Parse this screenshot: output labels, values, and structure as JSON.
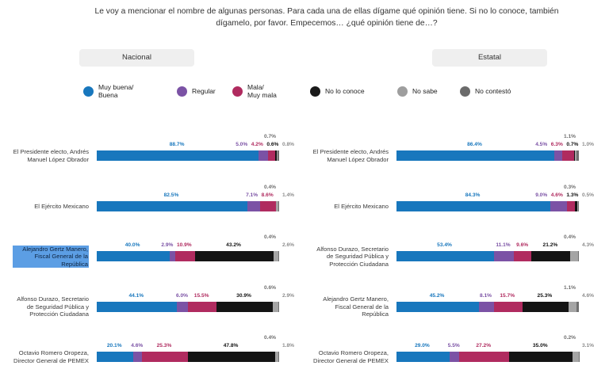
{
  "title": "Le voy a mencionar el nombre de algunas personas. Para cada una de ellas dígame qué opinión tiene. Si no lo conoce, también\ndígamelo, por favor. Empecemos… ¿qué opinión tiene de…?",
  "legend": {
    "items": [
      {
        "label": "Muy buena/\nBuena",
        "color": "#1877BD"
      },
      {
        "label": "Regular",
        "color": "#7B52A5"
      },
      {
        "label": "Mala/\nMuy mala",
        "color": "#B02B5F"
      },
      {
        "label": "No lo conoce",
        "color": "#1A1A1A"
      },
      {
        "label": "No sabe",
        "color": "#9E9E9E"
      },
      {
        "label": "No contestó",
        "color": "#6B6B6B"
      }
    ]
  },
  "ui": {
    "selection_color": "#5C9EE4",
    "pill_background": "#EFEFEF"
  },
  "chart_data": {
    "type": "bar",
    "orientation": "horizontal-stacked",
    "unit": "percent",
    "xlim": [
      0,
      100
    ],
    "grid": false,
    "legend_position": "top",
    "segments": [
      "Muy buena/Buena",
      "Regular",
      "Mala/Muy mala",
      "No lo conoce",
      "No sabe",
      "No contestó"
    ],
    "segment_colors": [
      "#1877BD",
      "#7B52A5",
      "#B02B5F",
      "#141414",
      "#A5A5A5",
      "#707070"
    ],
    "label_colors": [
      "#1877BD",
      "#7B52A5",
      "#B02B5F",
      "#111111",
      "#8C8C8C",
      "#6F6F6F"
    ],
    "panels": [
      {
        "title": "Nacional",
        "rows": [
          {
            "label": "El Presidente electo, Andrés Manuel López Obrador",
            "values": [
              88.7,
              5.0,
              4.2,
              0.6,
              0.8,
              0.7
            ],
            "highlighted": false
          },
          {
            "label": "El Ejército Mexicano",
            "values": [
              82.5,
              7.1,
              8.6,
              0.0,
              1.4,
              0.4
            ],
            "highlighted": false
          },
          {
            "label": "Alejandro Gertz Manero, Fiscal General de la República",
            "values": [
              40.0,
              2.9,
              10.9,
              43.2,
              2.6,
              0.4
            ],
            "highlighted": true
          },
          {
            "label": "Alfonso Durazo, Secretario de Seguridad Pública y Protección Ciudadana",
            "values": [
              44.1,
              6.0,
              15.5,
              30.9,
              2.9,
              0.6
            ],
            "highlighted": false
          },
          {
            "label": "Octavio Romero Oropeza, Director General de PEMEX",
            "values": [
              20.1,
              4.6,
              25.3,
              47.8,
              1.8,
              0.4
            ],
            "highlighted": false
          }
        ]
      },
      {
        "title": "Estatal",
        "rows": [
          {
            "label": "El Presidente electo, Andrés Manuel López Obrador",
            "values": [
              86.4,
              4.5,
              6.3,
              0.7,
              1.0,
              1.1
            ],
            "highlighted": false
          },
          {
            "label": "El Ejército Mexicano",
            "values": [
              84.3,
              9.0,
              4.6,
              1.3,
              0.5,
              0.3
            ],
            "highlighted": false
          },
          {
            "label": "Alfonso Durazo, Secretario de Seguridad Pública y Protección Ciudadana",
            "values": [
              53.4,
              11.1,
              9.6,
              21.2,
              4.3,
              0.4
            ],
            "highlighted": false
          },
          {
            "label": "Alejandro Gertz Manero, Fiscal General de la República",
            "values": [
              45.2,
              8.1,
              15.7,
              25.3,
              4.6,
              1.1
            ],
            "highlighted": false
          },
          {
            "label": "Octavio Romero Oropeza, Director General de PEMEX",
            "values": [
              29.0,
              5.5,
              27.2,
              35.0,
              3.1,
              0.2
            ],
            "highlighted": false
          }
        ]
      }
    ]
  }
}
